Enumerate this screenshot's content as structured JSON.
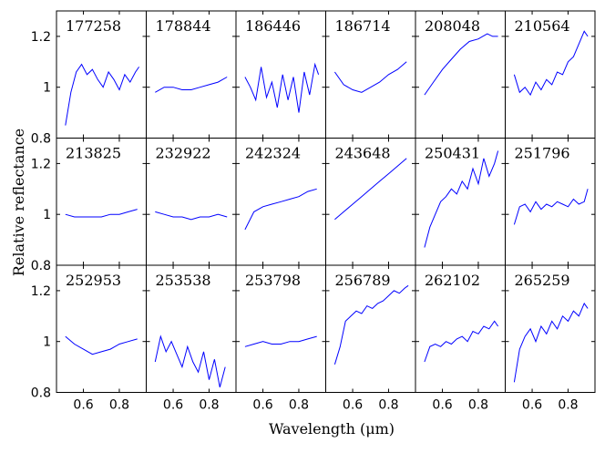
{
  "chart_data": {
    "type": "line",
    "xlabel": "Wavelength (μm)",
    "ylabel": "Relative reflectance",
    "xlim": [
      0.45,
      0.95
    ],
    "ylim": [
      0.8,
      1.3
    ],
    "xticks": [
      0.6,
      0.8
    ],
    "yticks": [
      0.8,
      1,
      1.2
    ],
    "xtick_labels": [
      "0.6",
      "0.8"
    ],
    "ytick_labels": [
      "0.8",
      "1",
      "1.2"
    ],
    "grid": false,
    "line_color": "#0000ff",
    "layout": {
      "rows": 3,
      "cols": 6
    },
    "panels": [
      {
        "id": "177258",
        "x": [
          0.5,
          0.53,
          0.56,
          0.59,
          0.62,
          0.65,
          0.68,
          0.71,
          0.74,
          0.77,
          0.8,
          0.83,
          0.86,
          0.89,
          0.91
        ],
        "y": [
          0.85,
          0.98,
          1.06,
          1.09,
          1.05,
          1.07,
          1.03,
          1.0,
          1.06,
          1.03,
          0.99,
          1.05,
          1.02,
          1.06,
          1.08
        ]
      },
      {
        "id": "178844",
        "x": [
          0.5,
          0.55,
          0.6,
          0.65,
          0.7,
          0.75,
          0.8,
          0.85,
          0.9
        ],
        "y": [
          0.98,
          1.0,
          1.0,
          0.99,
          0.99,
          1.0,
          1.01,
          1.02,
          1.04
        ]
      },
      {
        "id": "186446",
        "x": [
          0.5,
          0.53,
          0.56,
          0.59,
          0.62,
          0.65,
          0.68,
          0.71,
          0.74,
          0.77,
          0.8,
          0.83,
          0.86,
          0.89,
          0.91
        ],
        "y": [
          1.04,
          1.0,
          0.95,
          1.08,
          0.96,
          1.02,
          0.92,
          1.05,
          0.95,
          1.04,
          0.9,
          1.06,
          0.97,
          1.09,
          1.05
        ]
      },
      {
        "id": "186714",
        "x": [
          0.5,
          0.55,
          0.6,
          0.65,
          0.7,
          0.75,
          0.8,
          0.85,
          0.9
        ],
        "y": [
          1.06,
          1.01,
          0.99,
          0.98,
          1.0,
          1.02,
          1.05,
          1.07,
          1.1
        ]
      },
      {
        "id": "208048",
        "x": [
          0.5,
          0.55,
          0.6,
          0.65,
          0.7,
          0.75,
          0.8,
          0.85,
          0.88,
          0.91
        ],
        "y": [
          0.97,
          1.02,
          1.07,
          1.11,
          1.15,
          1.18,
          1.19,
          1.21,
          1.2,
          1.2
        ]
      },
      {
        "id": "210564",
        "x": [
          0.5,
          0.53,
          0.56,
          0.59,
          0.62,
          0.65,
          0.68,
          0.71,
          0.74,
          0.77,
          0.8,
          0.83,
          0.86,
          0.89,
          0.91
        ],
        "y": [
          1.05,
          0.98,
          1.0,
          0.97,
          1.02,
          0.99,
          1.03,
          1.01,
          1.06,
          1.05,
          1.1,
          1.12,
          1.17,
          1.22,
          1.2
        ]
      },
      {
        "id": "213825",
        "x": [
          0.5,
          0.55,
          0.6,
          0.65,
          0.7,
          0.75,
          0.8,
          0.85,
          0.9
        ],
        "y": [
          1.0,
          0.99,
          0.99,
          0.99,
          0.99,
          1.0,
          1.0,
          1.01,
          1.02
        ]
      },
      {
        "id": "232922",
        "x": [
          0.5,
          0.55,
          0.6,
          0.65,
          0.7,
          0.75,
          0.8,
          0.85,
          0.9
        ],
        "y": [
          1.01,
          1.0,
          0.99,
          0.99,
          0.98,
          0.99,
          0.99,
          1.0,
          0.99
        ]
      },
      {
        "id": "242324",
        "x": [
          0.5,
          0.55,
          0.6,
          0.65,
          0.7,
          0.75,
          0.8,
          0.85,
          0.9
        ],
        "y": [
          0.94,
          1.01,
          1.03,
          1.04,
          1.05,
          1.06,
          1.07,
          1.09,
          1.1
        ]
      },
      {
        "id": "243648",
        "x": [
          0.5,
          0.55,
          0.6,
          0.65,
          0.7,
          0.75,
          0.8,
          0.85,
          0.9
        ],
        "y": [
          0.98,
          1.01,
          1.04,
          1.07,
          1.1,
          1.13,
          1.16,
          1.19,
          1.22
        ]
      },
      {
        "id": "250431",
        "x": [
          0.5,
          0.53,
          0.56,
          0.59,
          0.62,
          0.65,
          0.68,
          0.71,
          0.74,
          0.77,
          0.8,
          0.83,
          0.86,
          0.89,
          0.91
        ],
        "y": [
          0.87,
          0.95,
          1.0,
          1.05,
          1.07,
          1.1,
          1.08,
          1.13,
          1.1,
          1.18,
          1.12,
          1.22,
          1.15,
          1.2,
          1.25
        ]
      },
      {
        "id": "251796",
        "x": [
          0.5,
          0.53,
          0.56,
          0.59,
          0.62,
          0.65,
          0.68,
          0.71,
          0.74,
          0.77,
          0.8,
          0.83,
          0.86,
          0.89,
          0.91
        ],
        "y": [
          0.96,
          1.03,
          1.04,
          1.01,
          1.05,
          1.02,
          1.04,
          1.03,
          1.05,
          1.04,
          1.03,
          1.06,
          1.04,
          1.05,
          1.1
        ]
      },
      {
        "id": "252953",
        "x": [
          0.5,
          0.55,
          0.6,
          0.65,
          0.7,
          0.75,
          0.8,
          0.85,
          0.9
        ],
        "y": [
          1.02,
          0.99,
          0.97,
          0.95,
          0.96,
          0.97,
          0.99,
          1.0,
          1.01
        ]
      },
      {
        "id": "253538",
        "x": [
          0.5,
          0.53,
          0.56,
          0.59,
          0.62,
          0.65,
          0.68,
          0.71,
          0.74,
          0.77,
          0.8,
          0.83,
          0.86,
          0.89
        ],
        "y": [
          0.92,
          1.02,
          0.96,
          1.0,
          0.95,
          0.9,
          0.98,
          0.92,
          0.88,
          0.96,
          0.85,
          0.93,
          0.82,
          0.9
        ]
      },
      {
        "id": "253798",
        "x": [
          0.5,
          0.55,
          0.6,
          0.65,
          0.7,
          0.75,
          0.8,
          0.85,
          0.9
        ],
        "y": [
          0.98,
          0.99,
          1.0,
          0.99,
          0.99,
          1.0,
          1.0,
          1.01,
          1.02
        ]
      },
      {
        "id": "256789",
        "x": [
          0.5,
          0.53,
          0.56,
          0.59,
          0.62,
          0.65,
          0.68,
          0.71,
          0.74,
          0.77,
          0.8,
          0.83,
          0.86,
          0.89,
          0.91
        ],
        "y": [
          0.91,
          0.98,
          1.08,
          1.1,
          1.12,
          1.11,
          1.14,
          1.13,
          1.15,
          1.16,
          1.18,
          1.2,
          1.19,
          1.21,
          1.22
        ]
      },
      {
        "id": "262102",
        "x": [
          0.5,
          0.53,
          0.56,
          0.59,
          0.62,
          0.65,
          0.68,
          0.71,
          0.74,
          0.77,
          0.8,
          0.83,
          0.86,
          0.89,
          0.91
        ],
        "y": [
          0.92,
          0.98,
          0.99,
          0.98,
          1.0,
          0.99,
          1.01,
          1.02,
          1.0,
          1.04,
          1.03,
          1.06,
          1.05,
          1.08,
          1.06
        ]
      },
      {
        "id": "265259",
        "x": [
          0.5,
          0.53,
          0.56,
          0.59,
          0.62,
          0.65,
          0.68,
          0.71,
          0.74,
          0.77,
          0.8,
          0.83,
          0.86,
          0.89,
          0.91
        ],
        "y": [
          0.84,
          0.97,
          1.02,
          1.05,
          1.0,
          1.06,
          1.03,
          1.08,
          1.05,
          1.1,
          1.08,
          1.12,
          1.1,
          1.15,
          1.13
        ]
      }
    ]
  }
}
